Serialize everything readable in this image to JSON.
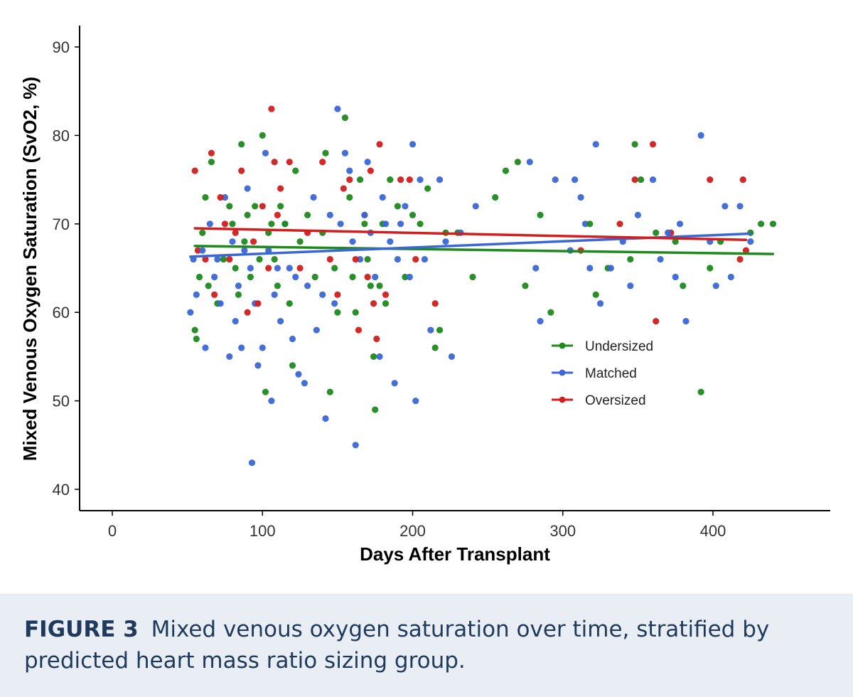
{
  "chart_data": {
    "type": "scatter",
    "xlabel": "Days After Transplant",
    "ylabel": "Mixed Venous Oxygen Saturation (SvO2, %)",
    "xlim": [
      -20,
      470
    ],
    "ylim": [
      38,
      93
    ],
    "x_ticks": [
      0,
      100,
      200,
      300,
      400
    ],
    "y_ticks": [
      40,
      50,
      60,
      70,
      80,
      90
    ],
    "grid": false,
    "legend_position": "center-right",
    "trend_lines": "linear fit per group",
    "series": [
      {
        "name": "Undersized",
        "color": "#1e8a1e",
        "points": [
          [
            55,
            58
          ],
          [
            56,
            57
          ],
          [
            58,
            64
          ],
          [
            60,
            69
          ],
          [
            62,
            73
          ],
          [
            64,
            63
          ],
          [
            66,
            77
          ],
          [
            70,
            61
          ],
          [
            74,
            66
          ],
          [
            78,
            72
          ],
          [
            80,
            70
          ],
          [
            82,
            65
          ],
          [
            84,
            62
          ],
          [
            86,
            79
          ],
          [
            88,
            68
          ],
          [
            90,
            71
          ],
          [
            92,
            64
          ],
          [
            95,
            72
          ],
          [
            98,
            66
          ],
          [
            100,
            80
          ],
          [
            102,
            51
          ],
          [
            104,
            69
          ],
          [
            106,
            70
          ],
          [
            108,
            66
          ],
          [
            110,
            63
          ],
          [
            112,
            72
          ],
          [
            115,
            70
          ],
          [
            118,
            61
          ],
          [
            120,
            54
          ],
          [
            122,
            76
          ],
          [
            125,
            68
          ],
          [
            130,
            71
          ],
          [
            135,
            64
          ],
          [
            140,
            69
          ],
          [
            142,
            78
          ],
          [
            145,
            51
          ],
          [
            148,
            65
          ],
          [
            150,
            60
          ],
          [
            155,
            82
          ],
          [
            158,
            73
          ],
          [
            160,
            64
          ],
          [
            162,
            60
          ],
          [
            165,
            75
          ],
          [
            168,
            70
          ],
          [
            170,
            66
          ],
          [
            172,
            63
          ],
          [
            174,
            55
          ],
          [
            175,
            49
          ],
          [
            178,
            63
          ],
          [
            180,
            70
          ],
          [
            182,
            61
          ],
          [
            185,
            75
          ],
          [
            190,
            72
          ],
          [
            195,
            64
          ],
          [
            200,
            71
          ],
          [
            205,
            70
          ],
          [
            210,
            74
          ],
          [
            215,
            56
          ],
          [
            218,
            58
          ],
          [
            222,
            69
          ],
          [
            230,
            69
          ],
          [
            240,
            64
          ],
          [
            255,
            73
          ],
          [
            262,
            76
          ],
          [
            270,
            77
          ],
          [
            275,
            63
          ],
          [
            285,
            71
          ],
          [
            292,
            60
          ],
          [
            318,
            70
          ],
          [
            322,
            62
          ],
          [
            330,
            65
          ],
          [
            345,
            66
          ],
          [
            348,
            79
          ],
          [
            352,
            75
          ],
          [
            362,
            69
          ],
          [
            375,
            68
          ],
          [
            380,
            63
          ],
          [
            392,
            51
          ],
          [
            398,
            65
          ],
          [
            405,
            68
          ],
          [
            425,
            69
          ],
          [
            432,
            70
          ],
          [
            440,
            70
          ]
        ]
      },
      {
        "name": "Matched",
        "color": "#3a66d6",
        "points": [
          [
            52,
            60
          ],
          [
            54,
            66
          ],
          [
            56,
            62
          ],
          [
            60,
            67
          ],
          [
            62,
            56
          ],
          [
            65,
            70
          ],
          [
            68,
            64
          ],
          [
            70,
            66
          ],
          [
            72,
            61
          ],
          [
            75,
            73
          ],
          [
            78,
            55
          ],
          [
            80,
            68
          ],
          [
            82,
            59
          ],
          [
            84,
            63
          ],
          [
            86,
            56
          ],
          [
            88,
            67
          ],
          [
            90,
            74
          ],
          [
            92,
            65
          ],
          [
            93,
            43
          ],
          [
            95,
            61
          ],
          [
            97,
            54
          ],
          [
            100,
            56
          ],
          [
            102,
            78
          ],
          [
            104,
            67
          ],
          [
            106,
            50
          ],
          [
            108,
            62
          ],
          [
            110,
            65
          ],
          [
            112,
            59
          ],
          [
            115,
            70
          ],
          [
            118,
            65
          ],
          [
            120,
            57
          ],
          [
            122,
            64
          ],
          [
            124,
            53
          ],
          [
            128,
            52
          ],
          [
            130,
            63
          ],
          [
            134,
            73
          ],
          [
            136,
            58
          ],
          [
            140,
            62
          ],
          [
            142,
            48
          ],
          [
            145,
            71
          ],
          [
            148,
            61
          ],
          [
            150,
            83
          ],
          [
            152,
            70
          ],
          [
            155,
            78
          ],
          [
            158,
            76
          ],
          [
            160,
            68
          ],
          [
            162,
            45
          ],
          [
            165,
            66
          ],
          [
            168,
            71
          ],
          [
            170,
            77
          ],
          [
            172,
            69
          ],
          [
            175,
            64
          ],
          [
            178,
            55
          ],
          [
            180,
            73
          ],
          [
            182,
            70
          ],
          [
            185,
            68
          ],
          [
            188,
            52
          ],
          [
            190,
            66
          ],
          [
            192,
            70
          ],
          [
            195,
            72
          ],
          [
            198,
            64
          ],
          [
            200,
            79
          ],
          [
            202,
            50
          ],
          [
            205,
            75
          ],
          [
            208,
            66
          ],
          [
            212,
            58
          ],
          [
            218,
            75
          ],
          [
            222,
            68
          ],
          [
            226,
            55
          ],
          [
            232,
            69
          ],
          [
            242,
            72
          ],
          [
            278,
            77
          ],
          [
            282,
            65
          ],
          [
            285,
            59
          ],
          [
            295,
            75
          ],
          [
            305,
            67
          ],
          [
            308,
            75
          ],
          [
            312,
            73
          ],
          [
            315,
            70
          ],
          [
            318,
            65
          ],
          [
            322,
            79
          ],
          [
            325,
            61
          ],
          [
            332,
            65
          ],
          [
            340,
            68
          ],
          [
            345,
            63
          ],
          [
            350,
            71
          ],
          [
            360,
            75
          ],
          [
            365,
            66
          ],
          [
            370,
            69
          ],
          [
            375,
            64
          ],
          [
            378,
            70
          ],
          [
            382,
            59
          ],
          [
            392,
            80
          ],
          [
            398,
            68
          ],
          [
            402,
            63
          ],
          [
            408,
            72
          ],
          [
            412,
            64
          ],
          [
            418,
            72
          ],
          [
            425,
            68
          ]
        ]
      },
      {
        "name": "Oversized",
        "color": "#d21e1e",
        "points": [
          [
            55,
            76
          ],
          [
            57,
            67
          ],
          [
            62,
            66
          ],
          [
            66,
            78
          ],
          [
            68,
            62
          ],
          [
            72,
            73
          ],
          [
            75,
            70
          ],
          [
            78,
            66
          ],
          [
            82,
            69
          ],
          [
            86,
            76
          ],
          [
            90,
            60
          ],
          [
            94,
            68
          ],
          [
            97,
            61
          ],
          [
            100,
            72
          ],
          [
            104,
            65
          ],
          [
            106,
            83
          ],
          [
            108,
            77
          ],
          [
            110,
            71
          ],
          [
            112,
            74
          ],
          [
            118,
            77
          ],
          [
            125,
            65
          ],
          [
            130,
            69
          ],
          [
            140,
            77
          ],
          [
            145,
            66
          ],
          [
            150,
            62
          ],
          [
            154,
            74
          ],
          [
            158,
            75
          ],
          [
            162,
            66
          ],
          [
            164,
            58
          ],
          [
            168,
            71
          ],
          [
            170,
            64
          ],
          [
            172,
            76
          ],
          [
            174,
            61
          ],
          [
            176,
            57
          ],
          [
            178,
            79
          ],
          [
            182,
            62
          ],
          [
            192,
            75
          ],
          [
            198,
            75
          ],
          [
            202,
            66
          ],
          [
            215,
            61
          ],
          [
            312,
            67
          ],
          [
            338,
            70
          ],
          [
            348,
            75
          ],
          [
            360,
            79
          ],
          [
            362,
            59
          ],
          [
            372,
            69
          ],
          [
            398,
            75
          ],
          [
            418,
            66
          ],
          [
            420,
            75
          ],
          [
            422,
            67
          ]
        ]
      }
    ],
    "fits": [
      {
        "name": "Undersized",
        "from": [
          55,
          67.5
        ],
        "to": [
          440,
          66.6
        ]
      },
      {
        "name": "Matched",
        "from": [
          52,
          66.3
        ],
        "to": [
          425,
          68.9
        ]
      },
      {
        "name": "Oversized",
        "from": [
          55,
          69.5
        ],
        "to": [
          422,
          68.2
        ]
      }
    ]
  },
  "caption": {
    "label": "FIGURE 3",
    "text": "Mixed venous oxygen saturation over time, stratified by predicted heart mass ratio sizing group."
  }
}
